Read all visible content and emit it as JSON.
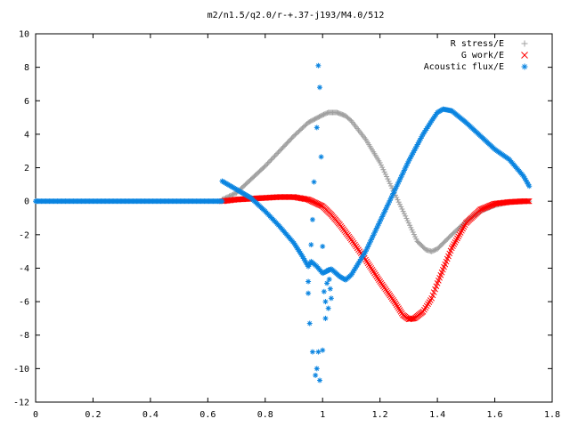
{
  "chart_data": {
    "type": "scatter",
    "title": "m2/n1.5/q2.0/r-+.37-j193/M4.0/512",
    "xlabel": "",
    "ylabel": "",
    "xlim": [
      0,
      1.8
    ],
    "ylim": [
      -12,
      10
    ],
    "grid": false,
    "legend_position": "top-right",
    "xticks": [
      "0",
      "0.2",
      "0.4",
      "0.6",
      "0.8",
      "1",
      "1.2",
      "1.4",
      "1.6",
      "1.8"
    ],
    "yticks": [
      "10",
      "8",
      "6",
      "4",
      "2",
      "0",
      "-2",
      "-4",
      "-6",
      "-8",
      "-10",
      "-12"
    ],
    "series": [
      {
        "name": "R stress/E",
        "marker": "+",
        "color": "#a0a0a0",
        "points": [
          [
            0.65,
            0.1
          ],
          [
            0.7,
            0.5
          ],
          [
            0.75,
            1.3
          ],
          [
            0.8,
            2.1
          ],
          [
            0.85,
            3.0
          ],
          [
            0.9,
            3.9
          ],
          [
            0.95,
            4.7
          ],
          [
            1.0,
            5.15
          ],
          [
            1.02,
            5.3
          ],
          [
            1.05,
            5.3
          ],
          [
            1.08,
            5.1
          ],
          [
            1.1,
            4.8
          ],
          [
            1.15,
            3.7
          ],
          [
            1.2,
            2.3
          ],
          [
            1.25,
            0.5
          ],
          [
            1.3,
            -1.3
          ],
          [
            1.33,
            -2.4
          ],
          [
            1.36,
            -2.9
          ],
          [
            1.38,
            -3.0
          ],
          [
            1.4,
            -2.85
          ],
          [
            1.45,
            -2.0
          ],
          [
            1.5,
            -1.2
          ],
          [
            1.55,
            -0.6
          ],
          [
            1.6,
            -0.25
          ],
          [
            1.65,
            -0.05
          ],
          [
            1.7,
            0.0
          ],
          [
            1.72,
            0.0
          ]
        ]
      },
      {
        "name": "G work/E",
        "marker": "x",
        "color": "#ff0000",
        "points": [
          [
            0.65,
            0.0
          ],
          [
            0.7,
            0.1
          ],
          [
            0.75,
            0.15
          ],
          [
            0.8,
            0.2
          ],
          [
            0.85,
            0.25
          ],
          [
            0.9,
            0.25
          ],
          [
            0.95,
            0.1
          ],
          [
            1.0,
            -0.3
          ],
          [
            1.03,
            -0.8
          ],
          [
            1.06,
            -1.4
          ],
          [
            1.1,
            -2.3
          ],
          [
            1.15,
            -3.5
          ],
          [
            1.2,
            -4.8
          ],
          [
            1.25,
            -6.0
          ],
          [
            1.28,
            -6.8
          ],
          [
            1.3,
            -7.05
          ],
          [
            1.32,
            -7.0
          ],
          [
            1.35,
            -6.6
          ],
          [
            1.38,
            -5.8
          ],
          [
            1.4,
            -4.9
          ],
          [
            1.45,
            -2.8
          ],
          [
            1.5,
            -1.3
          ],
          [
            1.55,
            -0.5
          ],
          [
            1.6,
            -0.15
          ],
          [
            1.65,
            -0.05
          ],
          [
            1.7,
            0.0
          ],
          [
            1.72,
            0.0
          ]
        ]
      },
      {
        "name": "Acoustic flux/E",
        "marker": "*",
        "color": "#0a84e0",
        "points": [
          [
            0.0,
            0.0
          ],
          [
            0.1,
            0.0
          ],
          [
            0.2,
            0.0
          ],
          [
            0.3,
            0.0
          ],
          [
            0.4,
            0.0
          ],
          [
            0.5,
            0.0
          ],
          [
            0.6,
            0.0
          ],
          [
            0.65,
            0.0
          ],
          [
            0.65,
            1.2
          ],
          [
            0.7,
            0.7
          ],
          [
            0.75,
            0.2
          ],
          [
            0.8,
            -0.6
          ],
          [
            0.85,
            -1.5
          ],
          [
            0.9,
            -2.5
          ],
          [
            0.93,
            -3.3
          ],
          [
            0.95,
            -3.9
          ],
          [
            0.96,
            -3.6
          ],
          [
            0.98,
            -3.9
          ],
          [
            1.0,
            -4.3
          ],
          [
            1.03,
            -4.05
          ],
          [
            1.06,
            -4.5
          ],
          [
            1.08,
            -4.7
          ],
          [
            1.1,
            -4.4
          ],
          [
            1.15,
            -3.0
          ],
          [
            1.2,
            -1.2
          ],
          [
            1.25,
            0.6
          ],
          [
            1.3,
            2.4
          ],
          [
            1.35,
            4.0
          ],
          [
            1.38,
            4.8
          ],
          [
            1.4,
            5.3
          ],
          [
            1.42,
            5.5
          ],
          [
            1.45,
            5.4
          ],
          [
            1.5,
            4.7
          ],
          [
            1.55,
            3.9
          ],
          [
            1.6,
            3.1
          ],
          [
            1.65,
            2.5
          ],
          [
            1.7,
            1.5
          ],
          [
            1.72,
            0.9
          ],
          [
            0.95,
            -4.8
          ],
          [
            0.95,
            -5.5
          ],
          [
            0.955,
            -7.3
          ],
          [
            0.96,
            -2.6
          ],
          [
            0.965,
            -1.1
          ],
          [
            0.965,
            -9.0
          ],
          [
            0.97,
            1.15
          ],
          [
            0.975,
            -10.4
          ],
          [
            0.98,
            4.4
          ],
          [
            0.98,
            -10.0
          ],
          [
            0.985,
            -9.0
          ],
          [
            0.985,
            8.1
          ],
          [
            0.99,
            6.8
          ],
          [
            0.99,
            -10.7
          ],
          [
            0.995,
            2.65
          ],
          [
            1.0,
            -2.7
          ],
          [
            1.0,
            -8.9
          ],
          [
            1.005,
            -5.4
          ],
          [
            1.01,
            -7.0
          ],
          [
            1.01,
            -6.0
          ],
          [
            1.015,
            -4.9
          ],
          [
            1.02,
            -6.4
          ],
          [
            1.02,
            -4.1
          ],
          [
            1.03,
            -5.8
          ]
        ]
      }
    ]
  }
}
